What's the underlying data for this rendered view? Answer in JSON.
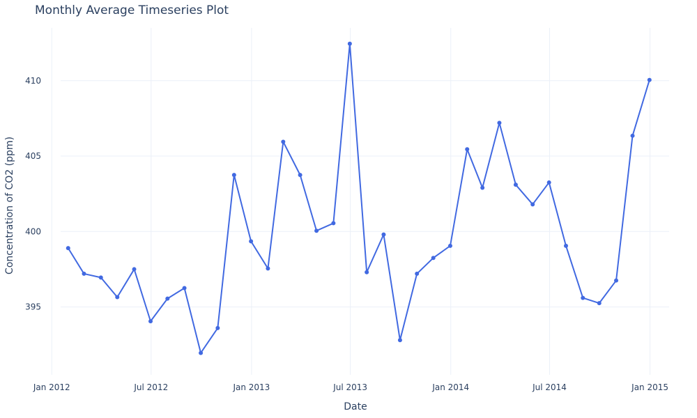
{
  "chart_data": {
    "type": "line",
    "title": "Monthly Average Timeseries Plot",
    "xlabel": "Date",
    "ylabel": "Concentration of CO2 (ppm)",
    "x_ticks": [
      {
        "date": "2012-01-01",
        "label": "Jan 2012"
      },
      {
        "date": "2012-07-01",
        "label": "Jul 2012"
      },
      {
        "date": "2013-01-01",
        "label": "Jan 2013"
      },
      {
        "date": "2013-07-01",
        "label": "Jul 2013"
      },
      {
        "date": "2014-01-01",
        "label": "Jan 2014"
      },
      {
        "date": "2014-07-01",
        "label": "Jul 2014"
      },
      {
        "date": "2015-01-01",
        "label": "Jan 2015"
      }
    ],
    "y_ticks": [
      395,
      400,
      405,
      410
    ],
    "ylim": [
      390.5,
      413.5
    ],
    "xlim": [
      "2011-12-01",
      "2015-02-05"
    ],
    "grid": true,
    "line_color": "#4169e1",
    "grid_color": "#ebf0f8",
    "series": [
      {
        "x": [
          "2012-01-31",
          "2012-02-29",
          "2012-03-31",
          "2012-04-30",
          "2012-05-31",
          "2012-06-30",
          "2012-07-31",
          "2012-08-31",
          "2012-09-30",
          "2012-10-31",
          "2012-11-30",
          "2012-12-31",
          "2013-01-31",
          "2013-02-28",
          "2013-03-31",
          "2013-04-30",
          "2013-05-31",
          "2013-06-30",
          "2013-07-31",
          "2013-08-31",
          "2013-09-30",
          "2013-10-31",
          "2013-11-30",
          "2013-12-31",
          "2014-01-31",
          "2014-02-28",
          "2014-03-31",
          "2014-04-30",
          "2014-05-31",
          "2014-06-30",
          "2014-07-31",
          "2014-08-31",
          "2014-09-30",
          "2014-10-31",
          "2014-11-30",
          "2014-12-31"
        ],
        "y": [
          398.9,
          397.2,
          396.95,
          395.65,
          397.5,
          394.05,
          395.55,
          396.25,
          391.95,
          393.6,
          403.75,
          399.35,
          397.55,
          405.95,
          403.75,
          400.05,
          400.55,
          412.45,
          397.3,
          399.8,
          392.8,
          397.2,
          398.25,
          399.05,
          405.45,
          402.9,
          407.2,
          403.1,
          401.8,
          403.25,
          399.05,
          395.6,
          395.25,
          396.75,
          406.35,
          410.05
        ]
      }
    ]
  }
}
